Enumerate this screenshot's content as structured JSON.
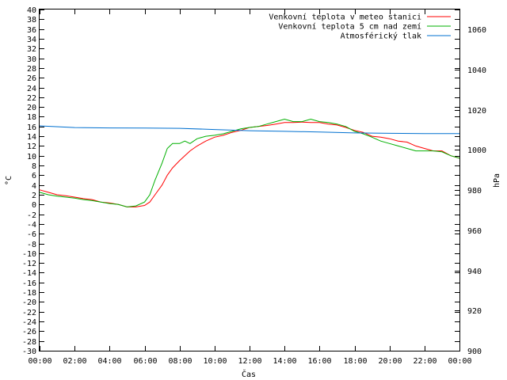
{
  "chart_data": {
    "type": "line",
    "title": "",
    "xlabel": "Čas",
    "ylabel": "°C",
    "y2label": "hPa",
    "xlim": [
      0,
      24
    ],
    "ylim": [
      -30,
      40
    ],
    "y2lim": [
      900,
      1070
    ],
    "grid": false,
    "legend_position": "top-right",
    "x_ticks": [
      "00:00",
      "02:00",
      "04:00",
      "06:00",
      "08:00",
      "10:00",
      "12:00",
      "14:00",
      "16:00",
      "18:00",
      "20:00",
      "22:00",
      "00:00"
    ],
    "y_ticks": [
      -30,
      -28,
      -26,
      -24,
      -22,
      -20,
      -18,
      -16,
      -14,
      -12,
      -10,
      -8,
      -6,
      -4,
      -2,
      0,
      2,
      4,
      6,
      8,
      10,
      12,
      14,
      16,
      18,
      20,
      22,
      24,
      26,
      28,
      30,
      32,
      34,
      36,
      38,
      40
    ],
    "y2_ticks": [
      900,
      920,
      940,
      960,
      980,
      1000,
      1020,
      1040,
      1060
    ],
    "series": [
      {
        "name": "Venkovní teplota v meteo stanici",
        "color": "#ff0000",
        "axis": "left",
        "x": [
          0,
          0.5,
          1,
          1.5,
          2,
          2.5,
          3,
          3.5,
          4,
          4.5,
          5,
          5.5,
          6,
          6.3,
          6.6,
          7,
          7.3,
          7.6,
          8,
          8.3,
          8.6,
          9,
          9.5,
          10,
          10.5,
          11,
          11.5,
          12,
          12.5,
          13,
          13.5,
          14,
          14.5,
          15,
          15.5,
          16,
          16.5,
          17,
          17.5,
          18,
          18.5,
          19,
          19.5,
          20,
          20.5,
          21,
          21.5,
          22,
          22.5,
          23,
          23.5,
          24
        ],
        "y": [
          3,
          2.5,
          2,
          1.8,
          1.5,
          1.2,
          1,
          0.5,
          0.3,
          0,
          -0.5,
          -0.5,
          -0.2,
          0.5,
          2,
          4,
          6,
          7.5,
          9,
          10,
          11,
          12,
          13,
          13.8,
          14.2,
          14.8,
          15.2,
          15.8,
          16,
          16.2,
          16.5,
          16.8,
          16.8,
          16.9,
          16.8,
          16.8,
          16.5,
          16.3,
          15.8,
          15.2,
          14.8,
          14,
          13.8,
          13.5,
          13,
          12.8,
          12,
          11.5,
          11,
          11,
          10,
          9.5
        ]
      },
      {
        "name": "Venkovní teplota 5 cm nad zemí",
        "color": "#00b000",
        "axis": "left",
        "x": [
          0,
          0.5,
          1,
          1.5,
          2,
          2.5,
          3,
          3.5,
          4,
          4.5,
          5,
          5.5,
          6,
          6.3,
          6.6,
          7,
          7.3,
          7.6,
          8,
          8.3,
          8.6,
          9,
          9.5,
          10,
          10.5,
          11,
          11.5,
          12,
          12.5,
          13,
          13.5,
          14,
          14.5,
          15,
          15.5,
          16,
          16.5,
          17,
          17.5,
          18,
          18.5,
          19,
          19.5,
          20,
          20.5,
          21,
          21.5,
          22,
          22.5,
          23,
          23.5,
          24
        ],
        "y": [
          2.5,
          2,
          1.7,
          1.5,
          1.3,
          1,
          0.8,
          0.5,
          0.2,
          0,
          -0.5,
          -0.3,
          0.5,
          2,
          5,
          8.5,
          11.5,
          12.5,
          12.5,
          13,
          12.5,
          13.5,
          14,
          14.2,
          14.5,
          15,
          15.5,
          15.8,
          16,
          16.5,
          17,
          17.5,
          17,
          17,
          17.5,
          17,
          16.8,
          16.5,
          16,
          15,
          14.5,
          13.8,
          13,
          12.5,
          12,
          11.5,
          11,
          11,
          11,
          10.8,
          10,
          9.5
        ]
      },
      {
        "name": "Atmosférický tlak",
        "color": "#0070d0",
        "axis": "right",
        "x": [
          0,
          2,
          4,
          6,
          8,
          10,
          12,
          14,
          16,
          18,
          20,
          22,
          24
        ],
        "y": [
          1012,
          1011.2,
          1011,
          1010.9,
          1010.8,
          1010.2,
          1009.6,
          1009.3,
          1009,
          1008.5,
          1008.3,
          1008.2,
          1008.2
        ]
      }
    ]
  }
}
